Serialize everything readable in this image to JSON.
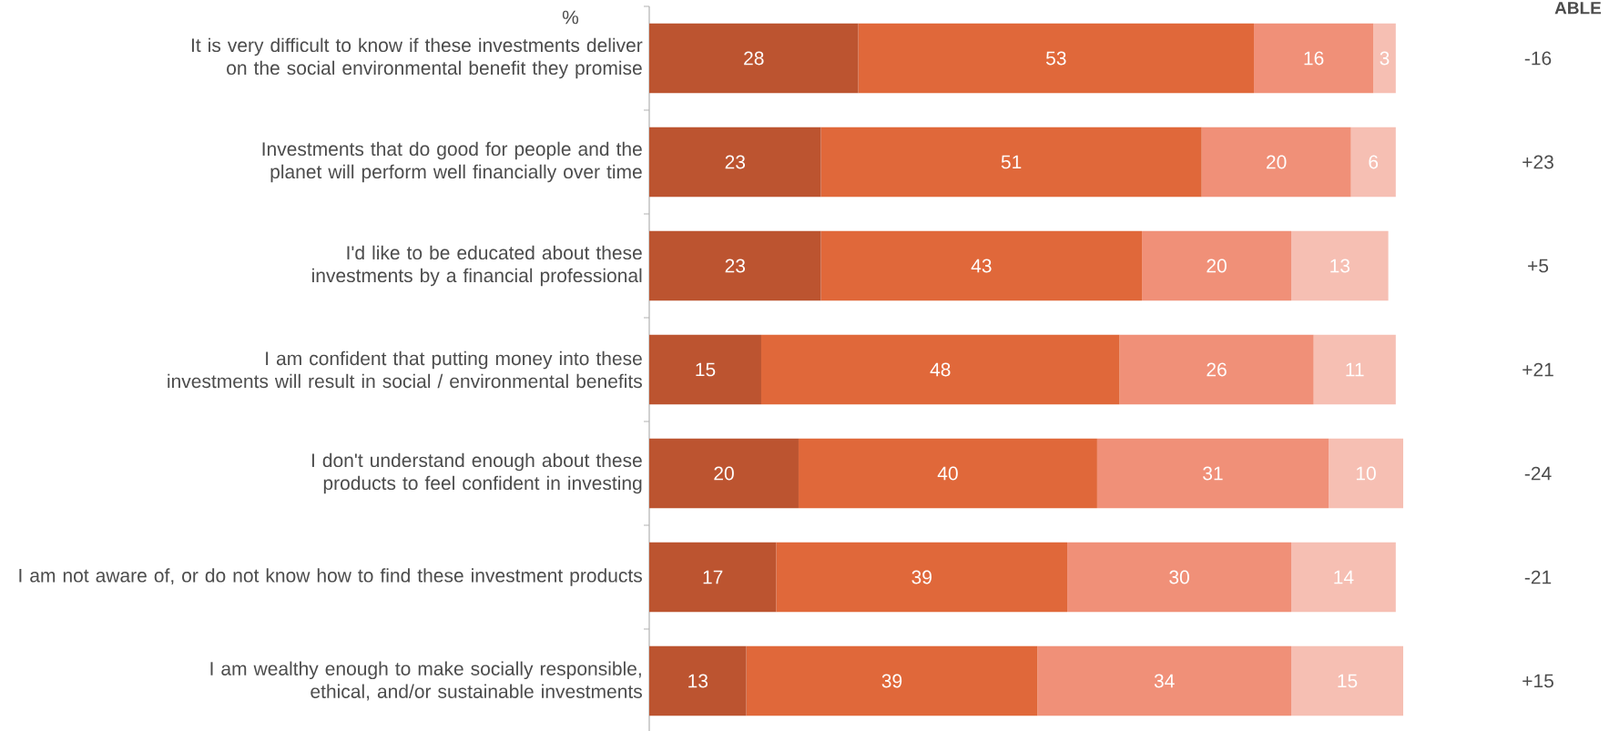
{
  "chart_data": {
    "type": "bar",
    "orientation": "horizontal",
    "stacked": true,
    "data_labels": true,
    "categories": [
      "It is very difficult to know if these investments deliver on the social environmental benefit they promise",
      "Investments that do good for people and the planet will perform well financially over time",
      "I'd like to be educated about these investments by a financial professional",
      "I am confident that putting money into these investments will result in social / environmental benefits",
      "I don't understand enough about these products to feel confident in investing",
      "I am not aware of, or do not know how to find these investment products",
      "I am wealthy enough to make socially responsible, ethical, and/or sustainable investments"
    ],
    "series": [
      {
        "color": "#bc5430",
        "values": [
          28,
          23,
          23,
          15,
          20,
          17,
          13
        ]
      },
      {
        "color": "#e0683a",
        "values": [
          53,
          51,
          43,
          48,
          40,
          39,
          39
        ]
      },
      {
        "color": "#f09078",
        "values": [
          16,
          20,
          20,
          26,
          31,
          30,
          34
        ]
      },
      {
        "color": "#f6bfb3",
        "values": [
          3,
          6,
          13,
          11,
          10,
          14,
          15
        ]
      }
    ],
    "tick_labels": "y",
    "annotations": [
      "%",
      "ABLE",
      "-16",
      "+23",
      "+5",
      "+21",
      "-24",
      "-21",
      "+15"
    ]
  }
}
